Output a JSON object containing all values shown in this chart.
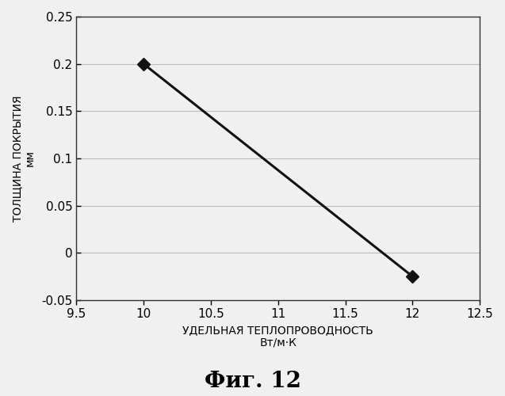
{
  "x": [
    10,
    12
  ],
  "y": [
    0.2,
    -0.025
  ],
  "xlim": [
    9.5,
    12.5
  ],
  "ylim": [
    -0.05,
    0.25
  ],
  "xticks": [
    9.5,
    10,
    10.5,
    11,
    11.5,
    12,
    12.5
  ],
  "yticks": [
    -0.05,
    0,
    0.05,
    0.1,
    0.15,
    0.2,
    0.25
  ],
  "xlabel_line1": "УДЕЛЬНАЯ ТЕПЛОПРОВОДНОСТЬ",
  "xlabel_line2": "Вт/м·К",
  "ylabel_main": "ТОЛЩИНА ПОКРЫТИЯ",
  "ylabel_sub": "мм",
  "title": "Фиг. 12",
  "line_color": "#111111",
  "marker_color": "#111111",
  "bg_color": "#f0f0f0",
  "plot_bg_color": "#f0f0f0",
  "grid_color": "#bbbbbb",
  "title_fontsize": 20,
  "label_fontsize": 10,
  "sublabel_fontsize": 9,
  "tick_fontsize": 11
}
